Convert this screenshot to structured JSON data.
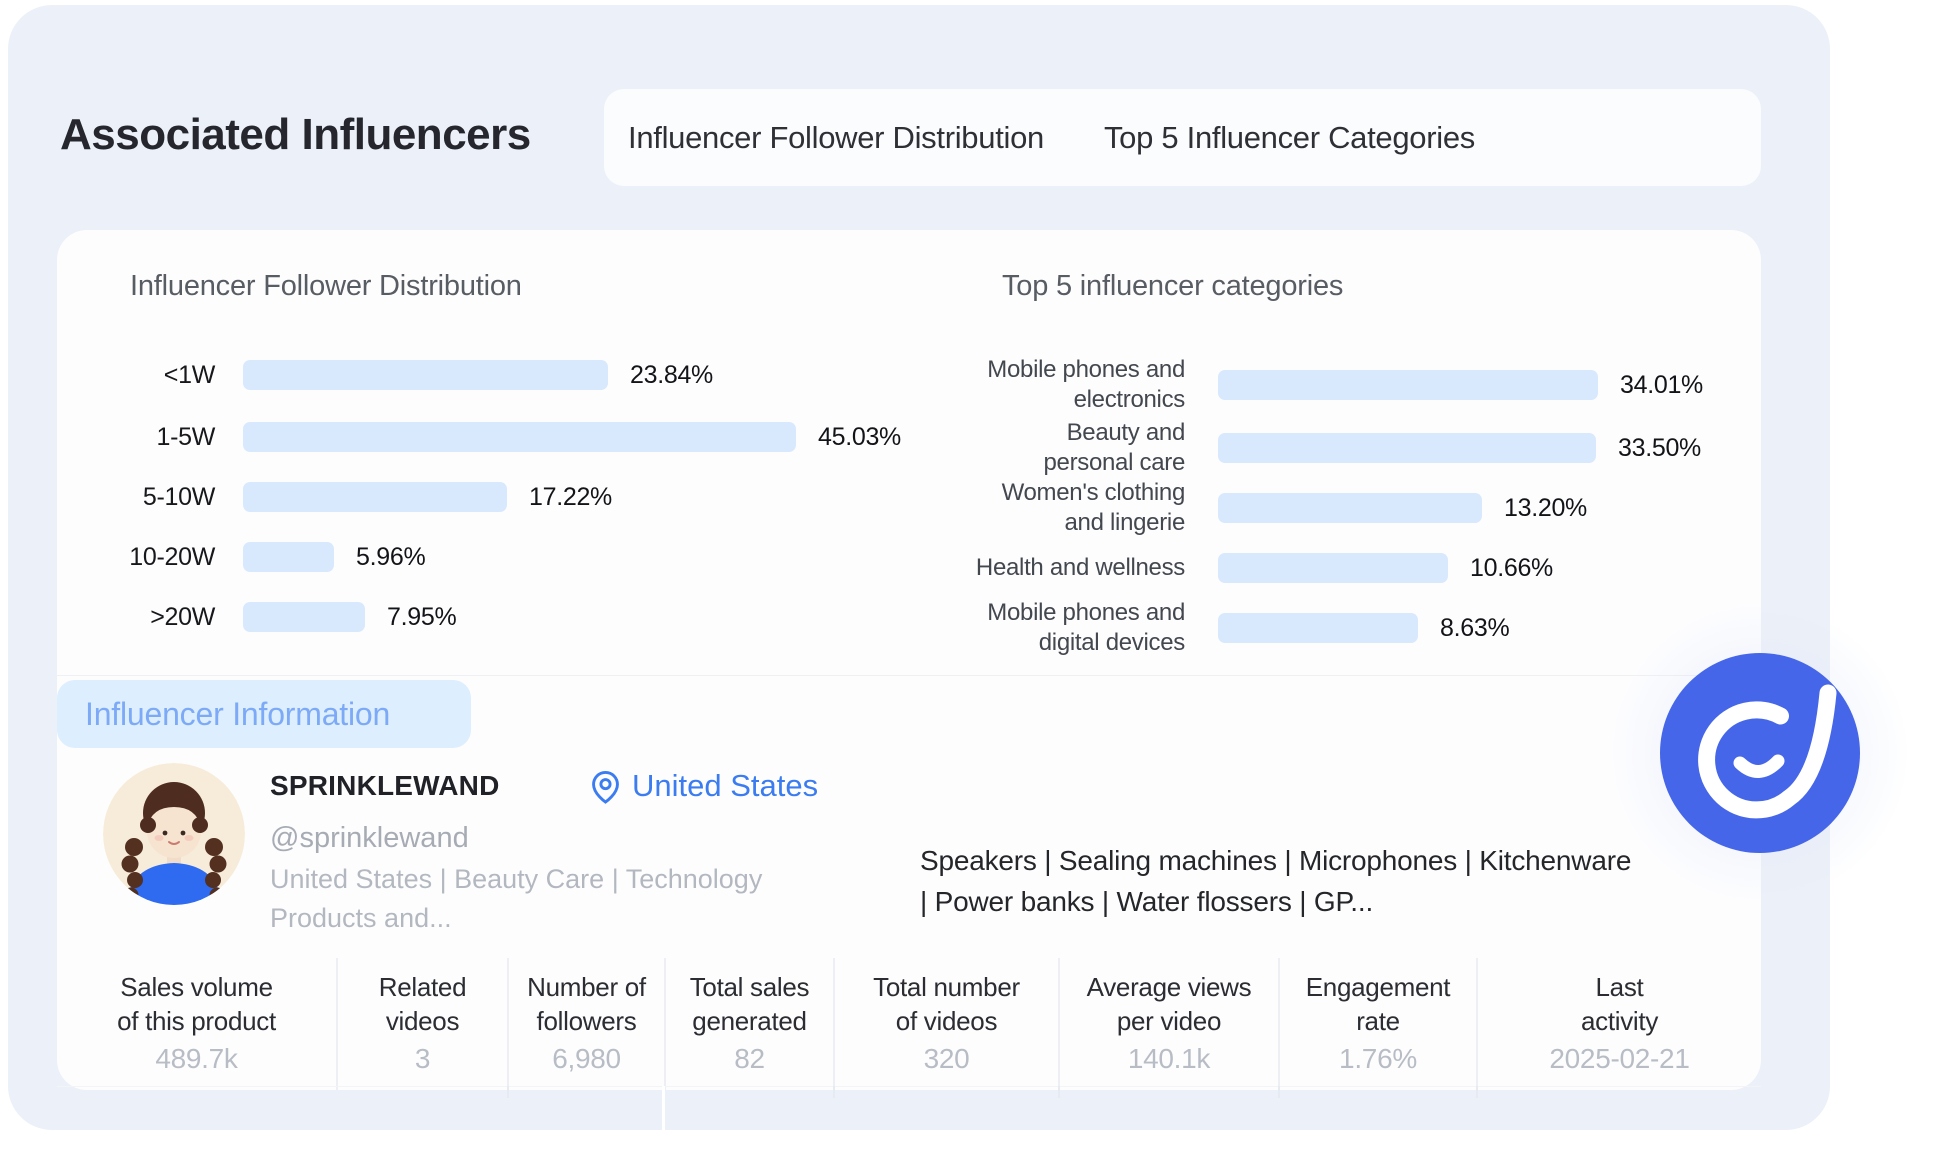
{
  "page": {
    "title": "Associated Influencers"
  },
  "tabs": [
    {
      "label": "Influencer Follower Distribution"
    },
    {
      "label": "Top 5 Influencer Categories"
    }
  ],
  "chart_data": [
    {
      "type": "bar",
      "orientation": "horizontal",
      "title": "Influencer Follower Distribution",
      "categories": [
        "<1W",
        "1-5W",
        "5-10W",
        "10-20W",
        ">20W"
      ],
      "values": [
        23.84,
        45.03,
        17.22,
        5.96,
        7.95
      ],
      "value_labels": [
        "23.84%",
        "45.03%",
        "17.22%",
        "5.96%",
        "7.95%"
      ],
      "bar_fractions": [
        0.66,
        1.0,
        0.478,
        0.165,
        0.221
      ],
      "bar_color": "#d9e9fd",
      "unit": "%",
      "grid": false,
      "legend": "none"
    },
    {
      "type": "bar",
      "orientation": "horizontal",
      "title": "Top 5 influencer categories",
      "categories": [
        "Mobile phones and electronics",
        "Beauty and personal care",
        "Women's clothing and lingerie",
        "Health and wellness",
        "Mobile phones and digital devices"
      ],
      "category_lines": [
        [
          "Mobile phones and",
          "electronics"
        ],
        [
          "Beauty and",
          "personal care"
        ],
        [
          "Women's clothing",
          "and lingerie"
        ],
        [
          "Health and wellness"
        ],
        [
          "Mobile phones and",
          "digital devices"
        ]
      ],
      "values": [
        34.01,
        33.5,
        13.2,
        10.66,
        8.63
      ],
      "value_labels": [
        "34.01%",
        "33.50%",
        "13.20%",
        "10.66%",
        "8.63%"
      ],
      "bar_fractions": [
        1.0,
        0.995,
        0.695,
        0.605,
        0.526
      ],
      "bar_color": "#d9e9fd",
      "unit": "%",
      "grid": false,
      "legend": "none"
    }
  ],
  "influencer_section": {
    "badge_label": "Influencer Information",
    "profile": {
      "name": "SPRINKLEWAND",
      "location": "United States",
      "handle": "@sprinklewand",
      "tags_line1": "United States | Beauty Care | Technology",
      "tags_line2": "Products and...",
      "products_line1": "Speakers | Sealing machines | Microphones | Kitchenware",
      "products_line2": "| Power banks | Water flossers | GP..."
    },
    "stats": [
      {
        "header": [
          "Sales volume",
          "of this product"
        ],
        "value": "489.7k"
      },
      {
        "header": [
          "Related",
          "videos"
        ],
        "value": "3"
      },
      {
        "header": [
          "Number of",
          "followers"
        ],
        "value": "6,980"
      },
      {
        "header": [
          "Total sales",
          "generated"
        ],
        "value": "82"
      },
      {
        "header": [
          "Total number",
          "of videos"
        ],
        "value": "320"
      },
      {
        "header": [
          "Average views",
          "per video"
        ],
        "value": "140.1k"
      },
      {
        "header": [
          "Engagement",
          "rate"
        ],
        "value": "1.76%"
      },
      {
        "header": [
          "Last",
          "activity"
        ],
        "value": "2025-02-21"
      }
    ]
  },
  "colors": {
    "canvas_background": "#ecf0f8",
    "card_background": "#fdfdfe",
    "bar_fill": "#d9e9fd",
    "badge_background": "#ddeefe",
    "badge_text": "#7daaf6",
    "accent_blue": "#3b7cf0",
    "logo_blue": "#4566e8",
    "muted_text": "#b3b8c0"
  }
}
